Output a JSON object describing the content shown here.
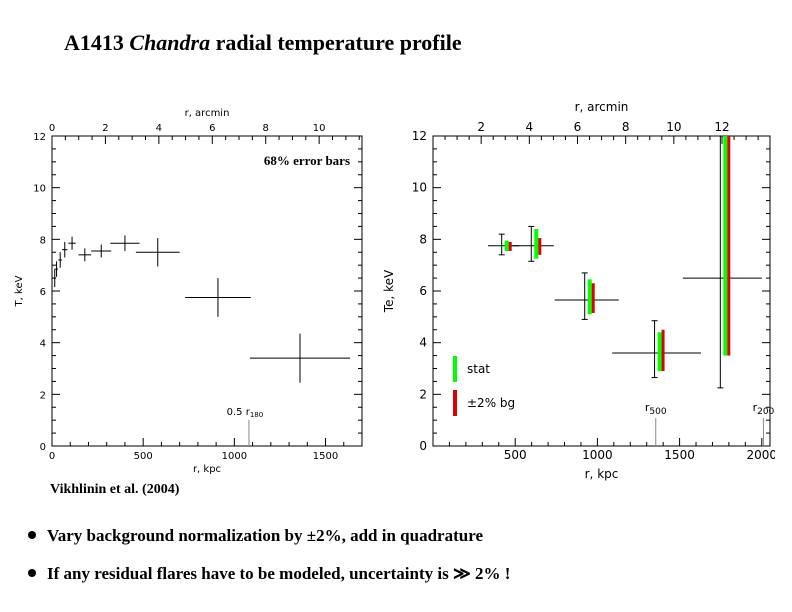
{
  "title": {
    "prefix": "A1413",
    "italic": "Chandra",
    "suffix": "radial temperature profile"
  },
  "citation": "Vikhlinin et al. (2004)",
  "bullets": [
    "Vary background normalization by ±2%, add in quadrature",
    "If any residual flares have to be modeled, uncertainty is ≫ 2% !"
  ],
  "chart_data": [
    {
      "type": "scatter",
      "annotation": "68% error bars",
      "xlabel": "r, kpc",
      "ylabel": "T, keV",
      "top_xlabel": "r, arcmin",
      "xlim": [
        0,
        1700
      ],
      "ylim": [
        0,
        12
      ],
      "x_ticks": [
        0,
        500,
        1000,
        1500
      ],
      "y_ticks": [
        0,
        2,
        4,
        6,
        8,
        10,
        12
      ],
      "top_ticks": [
        0,
        2,
        4,
        6,
        8,
        10
      ],
      "arcmin_to_kpc": 146.5,
      "marker_label": "0.5 r",
      "marker_sub": "180",
      "marker_x": 1080,
      "points": [
        {
          "x": 15,
          "xerr": 6,
          "y": 6.5,
          "yerr": 0.35
        },
        {
          "x": 25,
          "xerr": 8,
          "y": 6.85,
          "yerr": 0.3
        },
        {
          "x": 45,
          "xerr": 10,
          "y": 7.2,
          "yerr": 0.3
        },
        {
          "x": 70,
          "xerr": 15,
          "y": 7.6,
          "yerr": 0.3
        },
        {
          "x": 110,
          "xerr": 20,
          "y": 7.85,
          "yerr": 0.25
        },
        {
          "x": 180,
          "xerr": 35,
          "y": 7.4,
          "yerr": 0.25
        },
        {
          "x": 270,
          "xerr": 55,
          "y": 7.55,
          "yerr": 0.25
        },
        {
          "x": 400,
          "xerr": 80,
          "y": 7.85,
          "yerr": 0.3
        },
        {
          "x": 580,
          "xerr": 120,
          "y": 7.5,
          "yerr": 0.55
        },
        {
          "x": 910,
          "xerr": 180,
          "y": 5.75,
          "yerr": 0.75
        },
        {
          "x": 1360,
          "xerr": 275,
          "y": 3.4,
          "yerr": 0.95
        }
      ]
    },
    {
      "type": "scatter",
      "xlabel": "r, kpc",
      "ylabel": "Te, keV",
      "top_xlabel": "r, arcmin",
      "xlim": [
        0,
        2050
      ],
      "ylim": [
        0,
        12
      ],
      "x_ticks": [
        500,
        1000,
        1500,
        2000
      ],
      "y_ticks": [
        0,
        2,
        4,
        6,
        8,
        10,
        12
      ],
      "top_ticks": [
        2,
        4,
        6,
        8,
        10,
        12
      ],
      "arcmin_to_kpc": 146.5,
      "legend": [
        {
          "label": "stat",
          "color": "#00ff00"
        },
        {
          "label": "±2% bg",
          "color": "#dd0000"
        }
      ],
      "r500_label": "r",
      "r500_sub": "500",
      "r500_x": 1355,
      "r200_label": "r",
      "r200_sub": "200",
      "r200_x": 2010,
      "points": [
        {
          "x": 430,
          "xerr": 95,
          "y": 7.75,
          "stat": [
            7.55,
            7.95
          ],
          "bg": [
            7.55,
            7.9
          ],
          "total": [
            7.4,
            8.2
          ]
        },
        {
          "x": 610,
          "xerr": 125,
          "y": 7.75,
          "stat": [
            7.25,
            8.4
          ],
          "bg": [
            7.4,
            8.05
          ],
          "total": [
            7.15,
            8.5
          ]
        },
        {
          "x": 935,
          "xerr": 195,
          "y": 5.65,
          "stat": [
            5.1,
            6.45
          ],
          "bg": [
            5.15,
            6.3
          ],
          "total": [
            4.9,
            6.7
          ]
        },
        {
          "x": 1360,
          "xerr": 270,
          "y": 3.6,
          "stat": [
            2.9,
            4.4
          ],
          "bg": [
            2.9,
            4.5
          ],
          "total": [
            2.65,
            4.85
          ]
        },
        {
          "x": 1760,
          "xerr": 240,
          "y": 6.5,
          "stat": [
            3.5,
            12
          ],
          "bg": [
            3.5,
            12
          ],
          "total": [
            2.25,
            12
          ]
        }
      ]
    }
  ]
}
